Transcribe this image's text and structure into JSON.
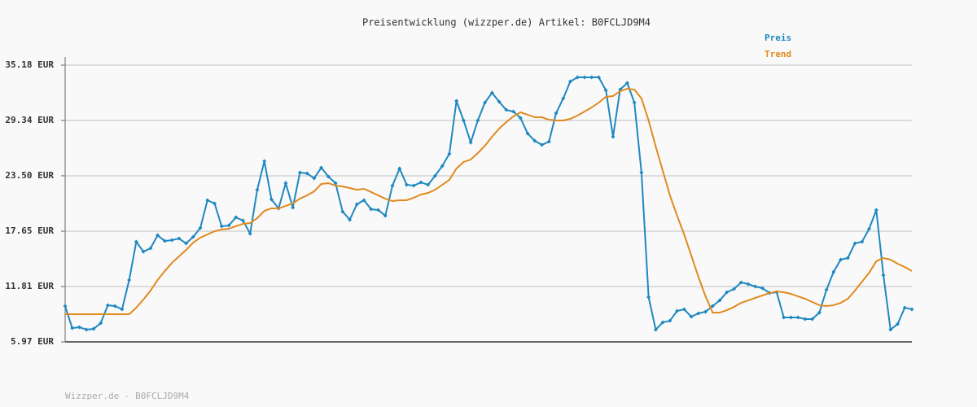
{
  "chart_data": {
    "type": "line",
    "title": "Preisentwicklung (wizzper.de) Artikel: B0FCLJD9M4",
    "watermark": "Wizzper.de - B0FCLJD9M4",
    "ylim": [
      5.97,
      35.18
    ],
    "yticks": [
      {
        "value": 5.97,
        "label": "5.97 EUR"
      },
      {
        "value": 11.81,
        "label": "11.81 EUR"
      },
      {
        "value": 17.65,
        "label": "17.65 EUR"
      },
      {
        "value": 23.5,
        "label": "23.50 EUR"
      },
      {
        "value": 29.34,
        "label": "29.34 EUR"
      },
      {
        "value": 35.18,
        "label": "35.18 EUR"
      }
    ],
    "grid": true,
    "legend": "top-right",
    "series": [
      {
        "name": "Preis",
        "color": "#1f88c0",
        "markers": true,
        "values": [
          9.75,
          7.43,
          7.52,
          7.26,
          7.34,
          7.95,
          9.84,
          9.75,
          9.41,
          12.5,
          16.54,
          15.5,
          15.85,
          17.22,
          16.62,
          16.71,
          16.88,
          16.37,
          17.05,
          18.0,
          20.92,
          20.58,
          18.17,
          18.26,
          19.11,
          18.77,
          17.4,
          22.03,
          25.04,
          21.0,
          20.06,
          22.72,
          20.15,
          23.84,
          23.75,
          23.24,
          24.35,
          23.41,
          22.72,
          19.72,
          18.86,
          20.49,
          20.92,
          19.97,
          19.89,
          19.29,
          22.46,
          24.27,
          22.55,
          22.46,
          22.81,
          22.55,
          23.5,
          24.53,
          25.82,
          31.4,
          29.34,
          27.02,
          29.34,
          31.23,
          32.26,
          31.31,
          30.45,
          30.28,
          29.6,
          27.96,
          27.19,
          26.76,
          27.1,
          30.11,
          31.66,
          33.46,
          33.89,
          33.89,
          33.89,
          33.89,
          32.52,
          27.62,
          32.6,
          33.29,
          31.23,
          23.84,
          10.7,
          7.26,
          8.03,
          8.2,
          9.23,
          9.41,
          8.63,
          8.98,
          9.15,
          9.75,
          10.35,
          11.21,
          11.55,
          12.24,
          12.07,
          11.81,
          11.64,
          11.12,
          11.21,
          8.55,
          8.55,
          8.55,
          8.38,
          8.38,
          9.06,
          11.47,
          13.36,
          14.65,
          14.82,
          16.37,
          16.54,
          17.91,
          19.89,
          13.01,
          7.26,
          7.86,
          9.58,
          9.41
        ]
      },
      {
        "name": "Trend",
        "color": "#e08a1e",
        "markers": false,
        "values": [
          8.89,
          8.89,
          8.89,
          8.89,
          8.89,
          8.89,
          8.89,
          8.89,
          8.89,
          8.89,
          9.58,
          10.44,
          11.38,
          12.5,
          13.44,
          14.3,
          14.99,
          15.68,
          16.45,
          16.97,
          17.31,
          17.65,
          17.83,
          17.91,
          18.17,
          18.43,
          18.51,
          19.03,
          19.8,
          20.06,
          20.06,
          20.32,
          20.58,
          21.09,
          21.43,
          21.86,
          22.64,
          22.72,
          22.46,
          22.38,
          22.21,
          22.03,
          22.12,
          21.78,
          21.43,
          21.09,
          20.83,
          20.92,
          20.92,
          21.18,
          21.52,
          21.69,
          22.03,
          22.55,
          23.07,
          24.27,
          24.96,
          25.21,
          25.9,
          26.68,
          27.62,
          28.48,
          29.17,
          29.77,
          30.2,
          29.94,
          29.68,
          29.68,
          29.42,
          29.34,
          29.34,
          29.51,
          29.85,
          30.28,
          30.71,
          31.23,
          31.83,
          31.92,
          32.43,
          32.69,
          32.6,
          31.66,
          29.34,
          26.59,
          24.01,
          21.43,
          19.29,
          17.31,
          15.08,
          12.84,
          10.78,
          9.06,
          9.06,
          9.32,
          9.66,
          10.09,
          10.35,
          10.61,
          10.87,
          11.12,
          11.3,
          11.21,
          11.04,
          10.78,
          10.52,
          10.18,
          9.84,
          9.75,
          9.84,
          10.09,
          10.52,
          11.38,
          12.33,
          13.27,
          14.48,
          14.82,
          14.65,
          14.22,
          13.87,
          13.44
        ]
      }
    ]
  }
}
